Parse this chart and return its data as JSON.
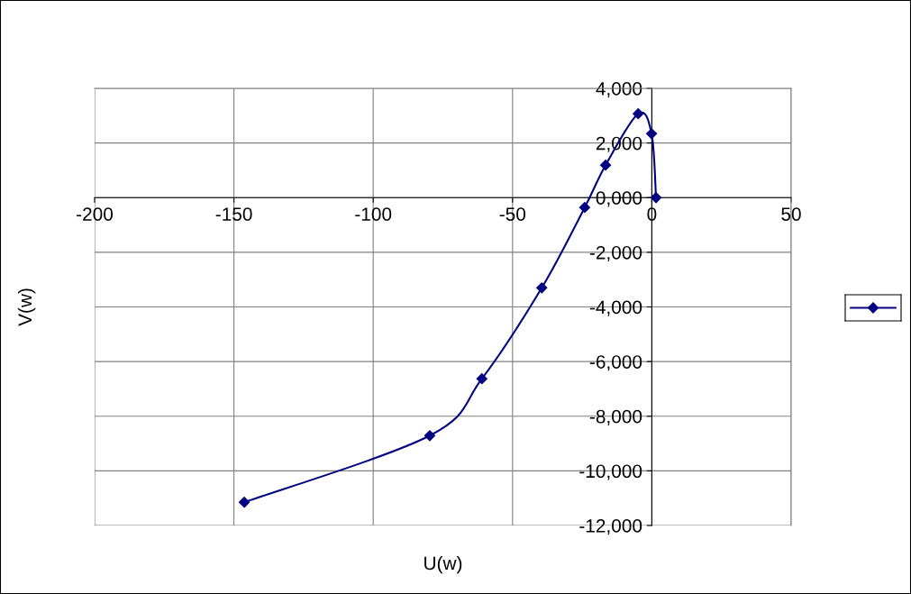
{
  "chart_data": {
    "type": "line",
    "xlabel": "U(w)",
    "ylabel": "V(w)",
    "x": [
      -146.3,
      -79.7,
      -61.0,
      -39.5,
      -24.1,
      -16.6,
      -4.9,
      -0.1,
      1.5
    ],
    "series": [
      {
        "color": "#000080",
        "values": [
          -11150,
          -8710,
          -6630,
          -3300,
          -360,
          1190,
          3070,
          2340,
          0
        ]
      }
    ],
    "marker": "diamond",
    "line_style": "solid",
    "xlim": [
      -200,
      50
    ],
    "xticks": [
      -200,
      -150,
      -100,
      -50,
      0,
      50
    ],
    "ylim": [
      -12000,
      4000
    ],
    "yticks": [
      {
        "value": -12000,
        "label": "-12,000"
      },
      {
        "value": -10000,
        "label": "-10,000"
      },
      {
        "value": -8000,
        "label": "-8,000"
      },
      {
        "value": -6000,
        "label": "-6,000"
      },
      {
        "value": -4000,
        "label": "-4,000"
      },
      {
        "value": -2000,
        "label": "-2,000"
      },
      {
        "value": 0,
        "label": "0,000"
      },
      {
        "value": 2000,
        "label": "2,000"
      },
      {
        "value": 4000,
        "label": "4,000"
      }
    ],
    "grid": true
  }
}
